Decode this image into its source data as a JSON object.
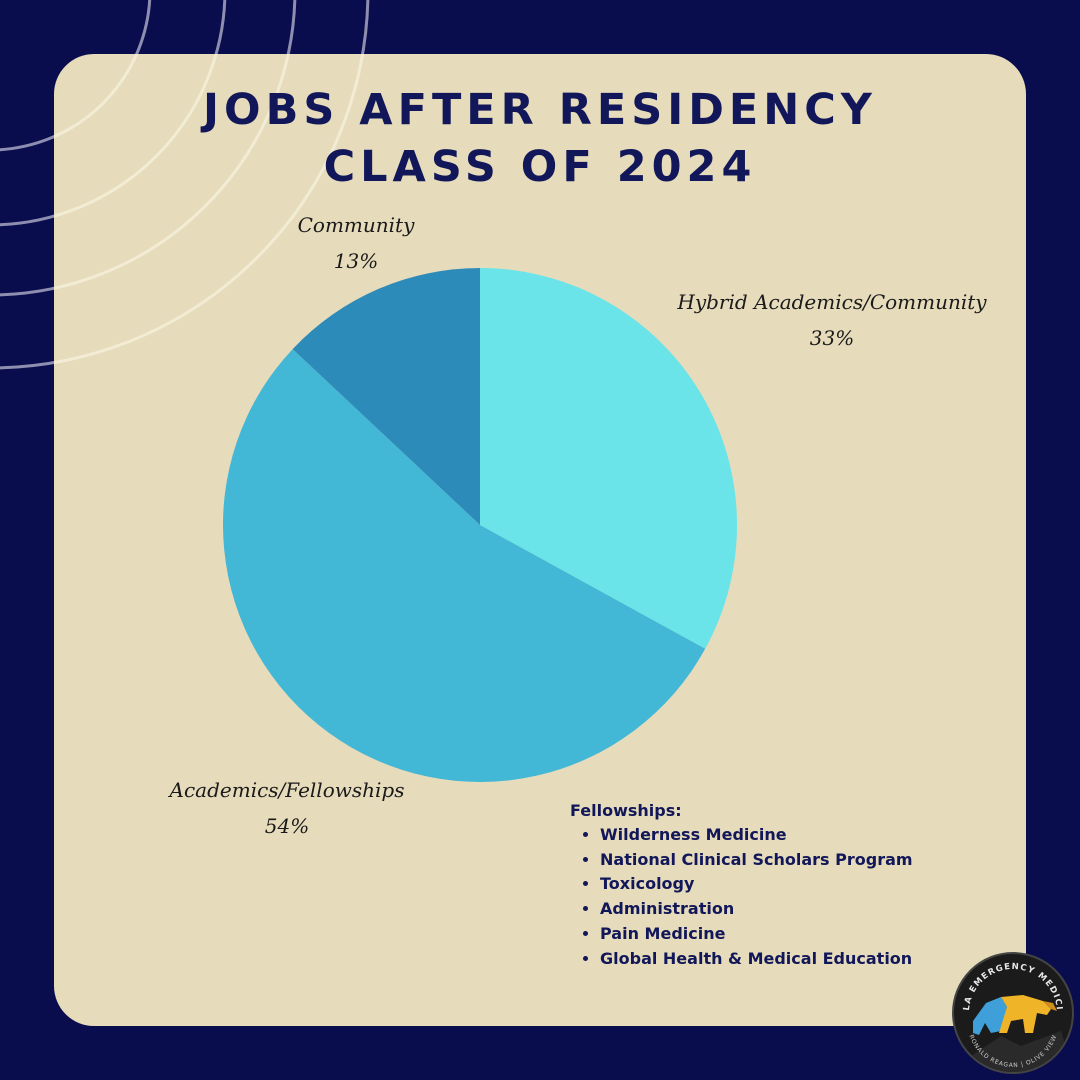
{
  "title_line1": "JOBS AFTER RESIDENCY",
  "title_line2": "CLASS OF 2024",
  "chart_data": {
    "type": "pie",
    "title": "JOBS AFTER RESIDENCY CLASS OF 2024",
    "slices": [
      {
        "label": "Hybrid Academics/Community",
        "value": 33,
        "display": "33%",
        "color": "#6ae4e8"
      },
      {
        "label": "Academics/Fellowships",
        "value": 54,
        "display": "54%",
        "color": "#43b7d6"
      },
      {
        "label": "Community",
        "value": 13,
        "display": "13%",
        "color": "#2d8bba"
      }
    ],
    "start": "12 o'clock",
    "direction": "clockwise"
  },
  "fellowships": {
    "heading": "Fellowships:",
    "items": [
      "Wilderness Medicine",
      "National Clinical Scholars Program",
      "Toxicology",
      "Administration",
      "Pain Medicine",
      "Global Health & Medical Education"
    ]
  },
  "logo": {
    "top_text": "UCLA EMERGENCY MEDICINE",
    "bottom_text": "RONALD REAGAN | OLIVE VIEW",
    "icon": "bear-icon"
  },
  "colors": {
    "background": "#0a0d4d",
    "card": "#e6dbbb",
    "title": "#111758"
  }
}
